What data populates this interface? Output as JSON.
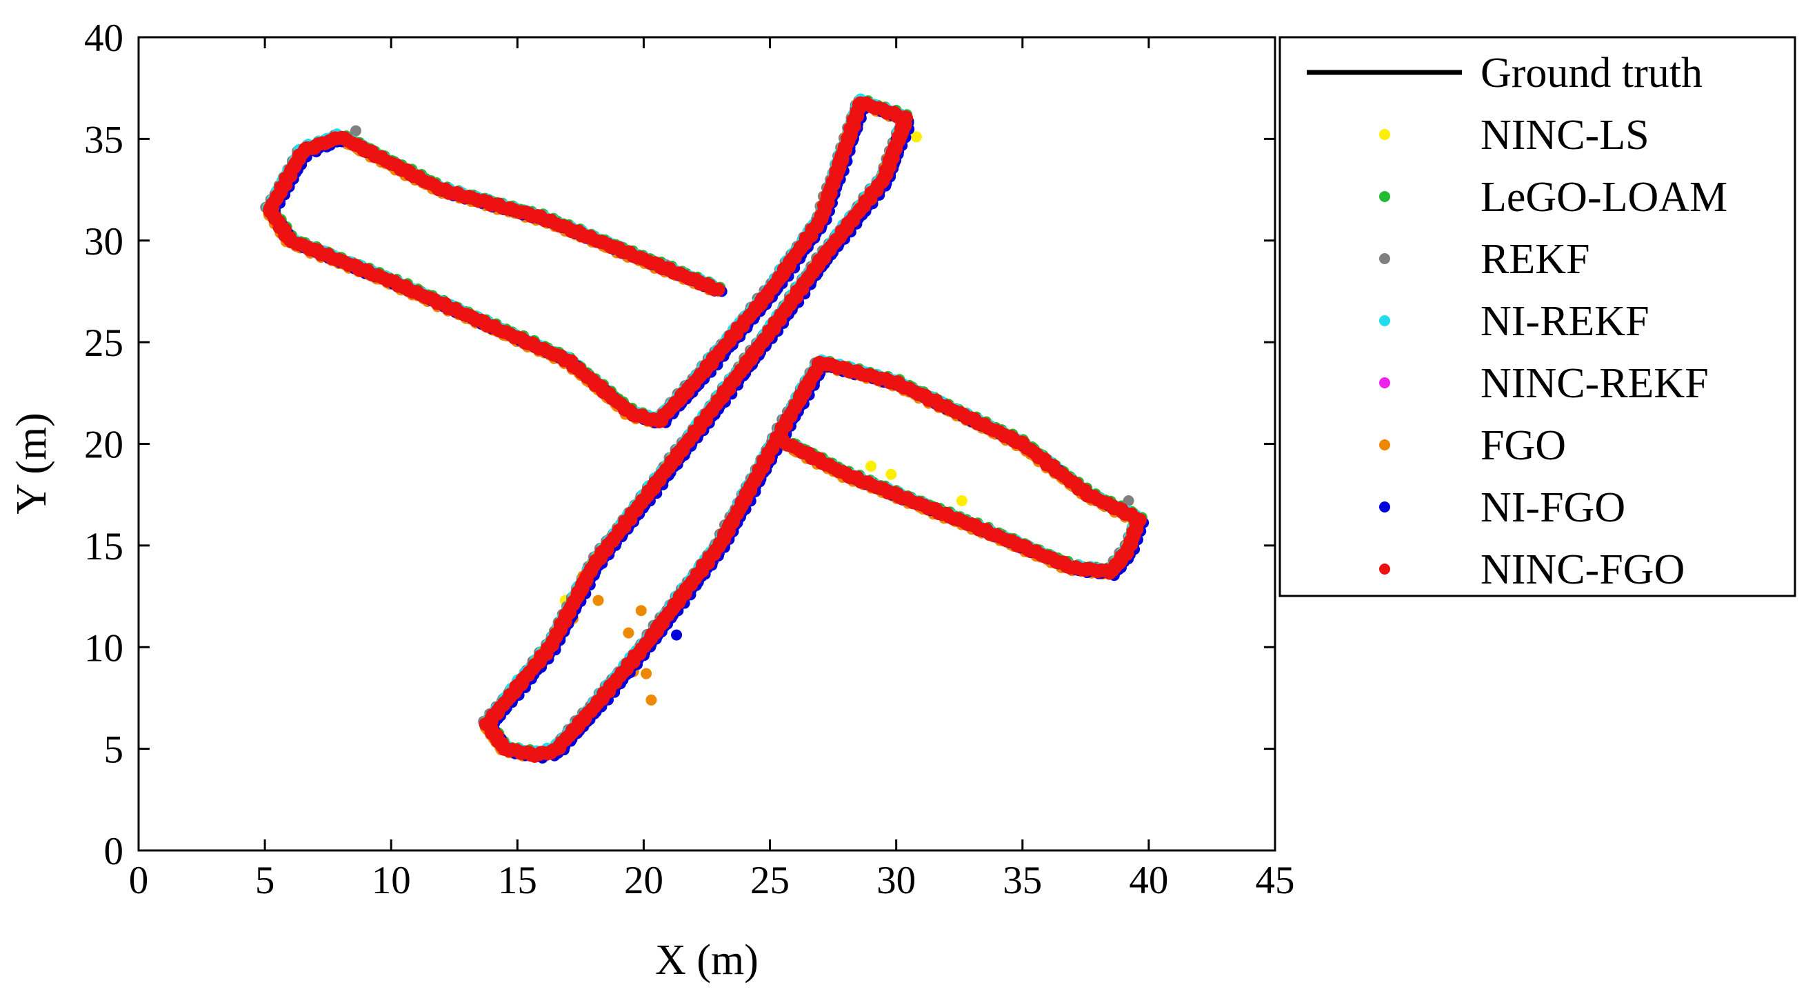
{
  "chart_data": {
    "type": "scatter",
    "xlabel": "X (m)",
    "ylabel": "Y (m)",
    "xlim": [
      0,
      45
    ],
    "ylim": [
      0,
      40
    ],
    "xticks": [
      0,
      5,
      10,
      15,
      20,
      25,
      30,
      35,
      40,
      45
    ],
    "yticks": [
      0,
      5,
      10,
      15,
      20,
      25,
      30,
      35,
      40
    ],
    "grid": false,
    "legend_position": "outside-right-top",
    "path": [
      [
        22.9,
        27.6
      ],
      [
        16.0,
        31.1
      ],
      [
        12.0,
        32.5
      ],
      [
        8.0,
        35.1
      ],
      [
        6.5,
        34.4
      ],
      [
        5.2,
        31.5
      ],
      [
        6.0,
        30.0
      ],
      [
        10.0,
        28.0
      ],
      [
        17.0,
        24.1
      ],
      [
        19.5,
        21.5
      ],
      [
        20.6,
        21.1
      ],
      [
        22.0,
        23.0
      ],
      [
        25.0,
        27.5
      ],
      [
        27.0,
        31.0
      ],
      [
        28.6,
        36.8
      ],
      [
        30.4,
        36.0
      ],
      [
        29.5,
        33.0
      ],
      [
        27.0,
        29.0
      ],
      [
        25.0,
        25.5
      ],
      [
        22.3,
        21.0
      ],
      [
        18.0,
        14.0
      ],
      [
        16.3,
        10.0
      ],
      [
        13.8,
        6.2
      ],
      [
        14.5,
        5.0
      ],
      [
        15.7,
        4.7
      ],
      [
        16.5,
        4.9
      ],
      [
        18.0,
        7.0
      ],
      [
        20.0,
        10.0
      ],
      [
        23.0,
        15.0
      ],
      [
        25.3,
        20.3
      ],
      [
        27.0,
        24.0
      ],
      [
        30.0,
        23.0
      ],
      [
        35.0,
        20.0
      ],
      [
        37.6,
        17.5
      ],
      [
        39.6,
        16.3
      ],
      [
        39.2,
        14.8
      ],
      [
        38.5,
        13.7
      ],
      [
        37.0,
        13.9
      ],
      [
        33.0,
        16.0
      ],
      [
        28.0,
        18.5
      ],
      [
        25.4,
        20.2
      ]
    ],
    "outliers": [
      {
        "series": "NINC-LS",
        "x": 14.7,
        "y": 25.3
      },
      {
        "series": "NINC-LS",
        "x": 15.5,
        "y": 25.0
      },
      {
        "series": "NINC-LS",
        "x": 29.0,
        "y": 18.9
      },
      {
        "series": "NINC-LS",
        "x": 29.8,
        "y": 18.5
      },
      {
        "series": "NINC-LS",
        "x": 32.6,
        "y": 17.2
      },
      {
        "series": "NINC-LS",
        "x": 30.8,
        "y": 35.1
      },
      {
        "series": "NINC-LS",
        "x": 16.9,
        "y": 12.3
      },
      {
        "series": "NINC-LS",
        "x": 37.0,
        "y": 14.0
      },
      {
        "series": "REKF",
        "x": 8.6,
        "y": 35.4
      },
      {
        "series": "REKF",
        "x": 9.0,
        "y": 34.5
      },
      {
        "series": "REKF",
        "x": 16.0,
        "y": 31.0
      },
      {
        "series": "REKF",
        "x": 17.8,
        "y": 23.4
      },
      {
        "series": "REKF",
        "x": 20.9,
        "y": 28.8
      },
      {
        "series": "REKF",
        "x": 39.2,
        "y": 17.2
      },
      {
        "series": "REKF",
        "x": 19.7,
        "y": 9.2
      },
      {
        "series": "FGO",
        "x": 17.2,
        "y": 11.4
      },
      {
        "series": "FGO",
        "x": 17.7,
        "y": 13.0
      },
      {
        "series": "FGO",
        "x": 18.2,
        "y": 12.3
      },
      {
        "series": "FGO",
        "x": 19.4,
        "y": 10.7
      },
      {
        "series": "FGO",
        "x": 19.9,
        "y": 11.8
      },
      {
        "series": "FGO",
        "x": 19.6,
        "y": 8.8
      },
      {
        "series": "FGO",
        "x": 20.1,
        "y": 8.7
      },
      {
        "series": "FGO",
        "x": 20.3,
        "y": 7.4
      },
      {
        "series": "FGO",
        "x": 17.6,
        "y": 13.5
      },
      {
        "series": "NI-FGO",
        "x": 21.3,
        "y": 10.6
      },
      {
        "series": "NI-FGO",
        "x": 35.6,
        "y": 14.7
      },
      {
        "series": "NI-FGO",
        "x": 30.0,
        "y": 35.0
      }
    ],
    "series": [
      {
        "name": "Ground truth",
        "kind": "line",
        "color": "#000000",
        "offset": [
          0,
          0
        ]
      },
      {
        "name": "NINC-LS",
        "kind": "scatter",
        "color": "#ffee00",
        "offset": [
          0.15,
          -0.12
        ]
      },
      {
        "name": "LeGO-LOAM",
        "kind": "scatter",
        "color": "#22bb33",
        "offset": [
          0.08,
          0.12
        ]
      },
      {
        "name": "REKF",
        "kind": "scatter",
        "color": "#808080",
        "offset": [
          -0.12,
          0.1
        ]
      },
      {
        "name": "NI-REKF",
        "kind": "scatter",
        "color": "#22ddee",
        "offset": [
          -0.06,
          0.14
        ]
      },
      {
        "name": "NINC-REKF",
        "kind": "scatter",
        "color": "#ee22ee",
        "offset": [
          0.05,
          -0.05
        ]
      },
      {
        "name": "FGO",
        "kind": "scatter",
        "color": "#ee8800",
        "offset": [
          -0.1,
          -0.1
        ]
      },
      {
        "name": "NI-FGO",
        "kind": "scatter",
        "color": "#0000dd",
        "offset": [
          0.16,
          -0.14
        ]
      },
      {
        "name": "NINC-FGO",
        "kind": "scatter",
        "color": "#ee1111",
        "offset": [
          0,
          0
        ]
      }
    ]
  }
}
